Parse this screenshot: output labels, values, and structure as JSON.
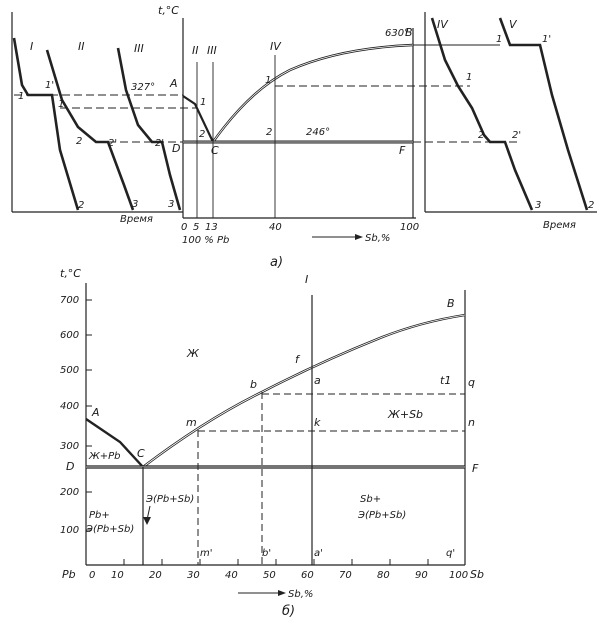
{
  "panel_a": {
    "caption": "а)",
    "axis_t": "t,°C",
    "time_label": "Время",
    "cool1": {
      "roman": [
        "I",
        "II",
        "III"
      ],
      "pts": [
        "1",
        "1",
        "1'",
        "2",
        "2'",
        "2'",
        "2",
        "3",
        "3"
      ]
    },
    "phase": {
      "roman": [
        "II",
        "III",
        "IV"
      ],
      "temp_A": "327°",
      "A": "A",
      "temp_B": "630°",
      "B": "B",
      "C": "C",
      "D": "D",
      "F": "F",
      "eut": "246°",
      "pt1": "1",
      "pt1_left": "1",
      "pt2": "2",
      "pt2_left": "2",
      "ticks": [
        "0",
        "5",
        "13",
        "40",
        "100"
      ],
      "pb_label": "100 % Pb",
      "sb_label": "Sb,%"
    },
    "cool2": {
      "roman": [
        "IV",
        "V"
      ],
      "pts": [
        "1",
        "1",
        "1'",
        "2",
        "2'",
        "3",
        "2"
      ]
    }
  },
  "panel_b": {
    "caption": "б)",
    "axis_t": "t,°C",
    "pb": "Pb",
    "sb": "Sb",
    "sb_axis": "Sb,%",
    "y_ticks": [
      "700",
      "600",
      "500",
      "400",
      "300",
      "200",
      "100"
    ],
    "x_ticks": [
      "0",
      "10",
      "20",
      "30",
      "40",
      "50",
      "60",
      "70",
      "80",
      "90",
      "100"
    ],
    "pts": {
      "A": "A",
      "B": "B",
      "C": "C",
      "D": "D",
      "F": "F",
      "I": "I",
      "f": "f",
      "a": "a",
      "b": "b",
      "m": "m",
      "k": "k",
      "n": "n",
      "q": "q",
      "t1": "t1",
      "m_p": "m'",
      "b_p": "b'",
      "a_p": "a'",
      "q_p": "q'"
    },
    "regions": {
      "liquid": "Ж",
      "liq_sb": "Ж+Sb",
      "liq_pb": "Ж+Pb",
      "eut": "Э(Pb+Sb)",
      "pb_e1": "Pb+",
      "pb_e2": "Э(Pb+Sb)",
      "sb_e1": "Sb+",
      "sb_e2": "Э(Pb+Sb)"
    }
  }
}
